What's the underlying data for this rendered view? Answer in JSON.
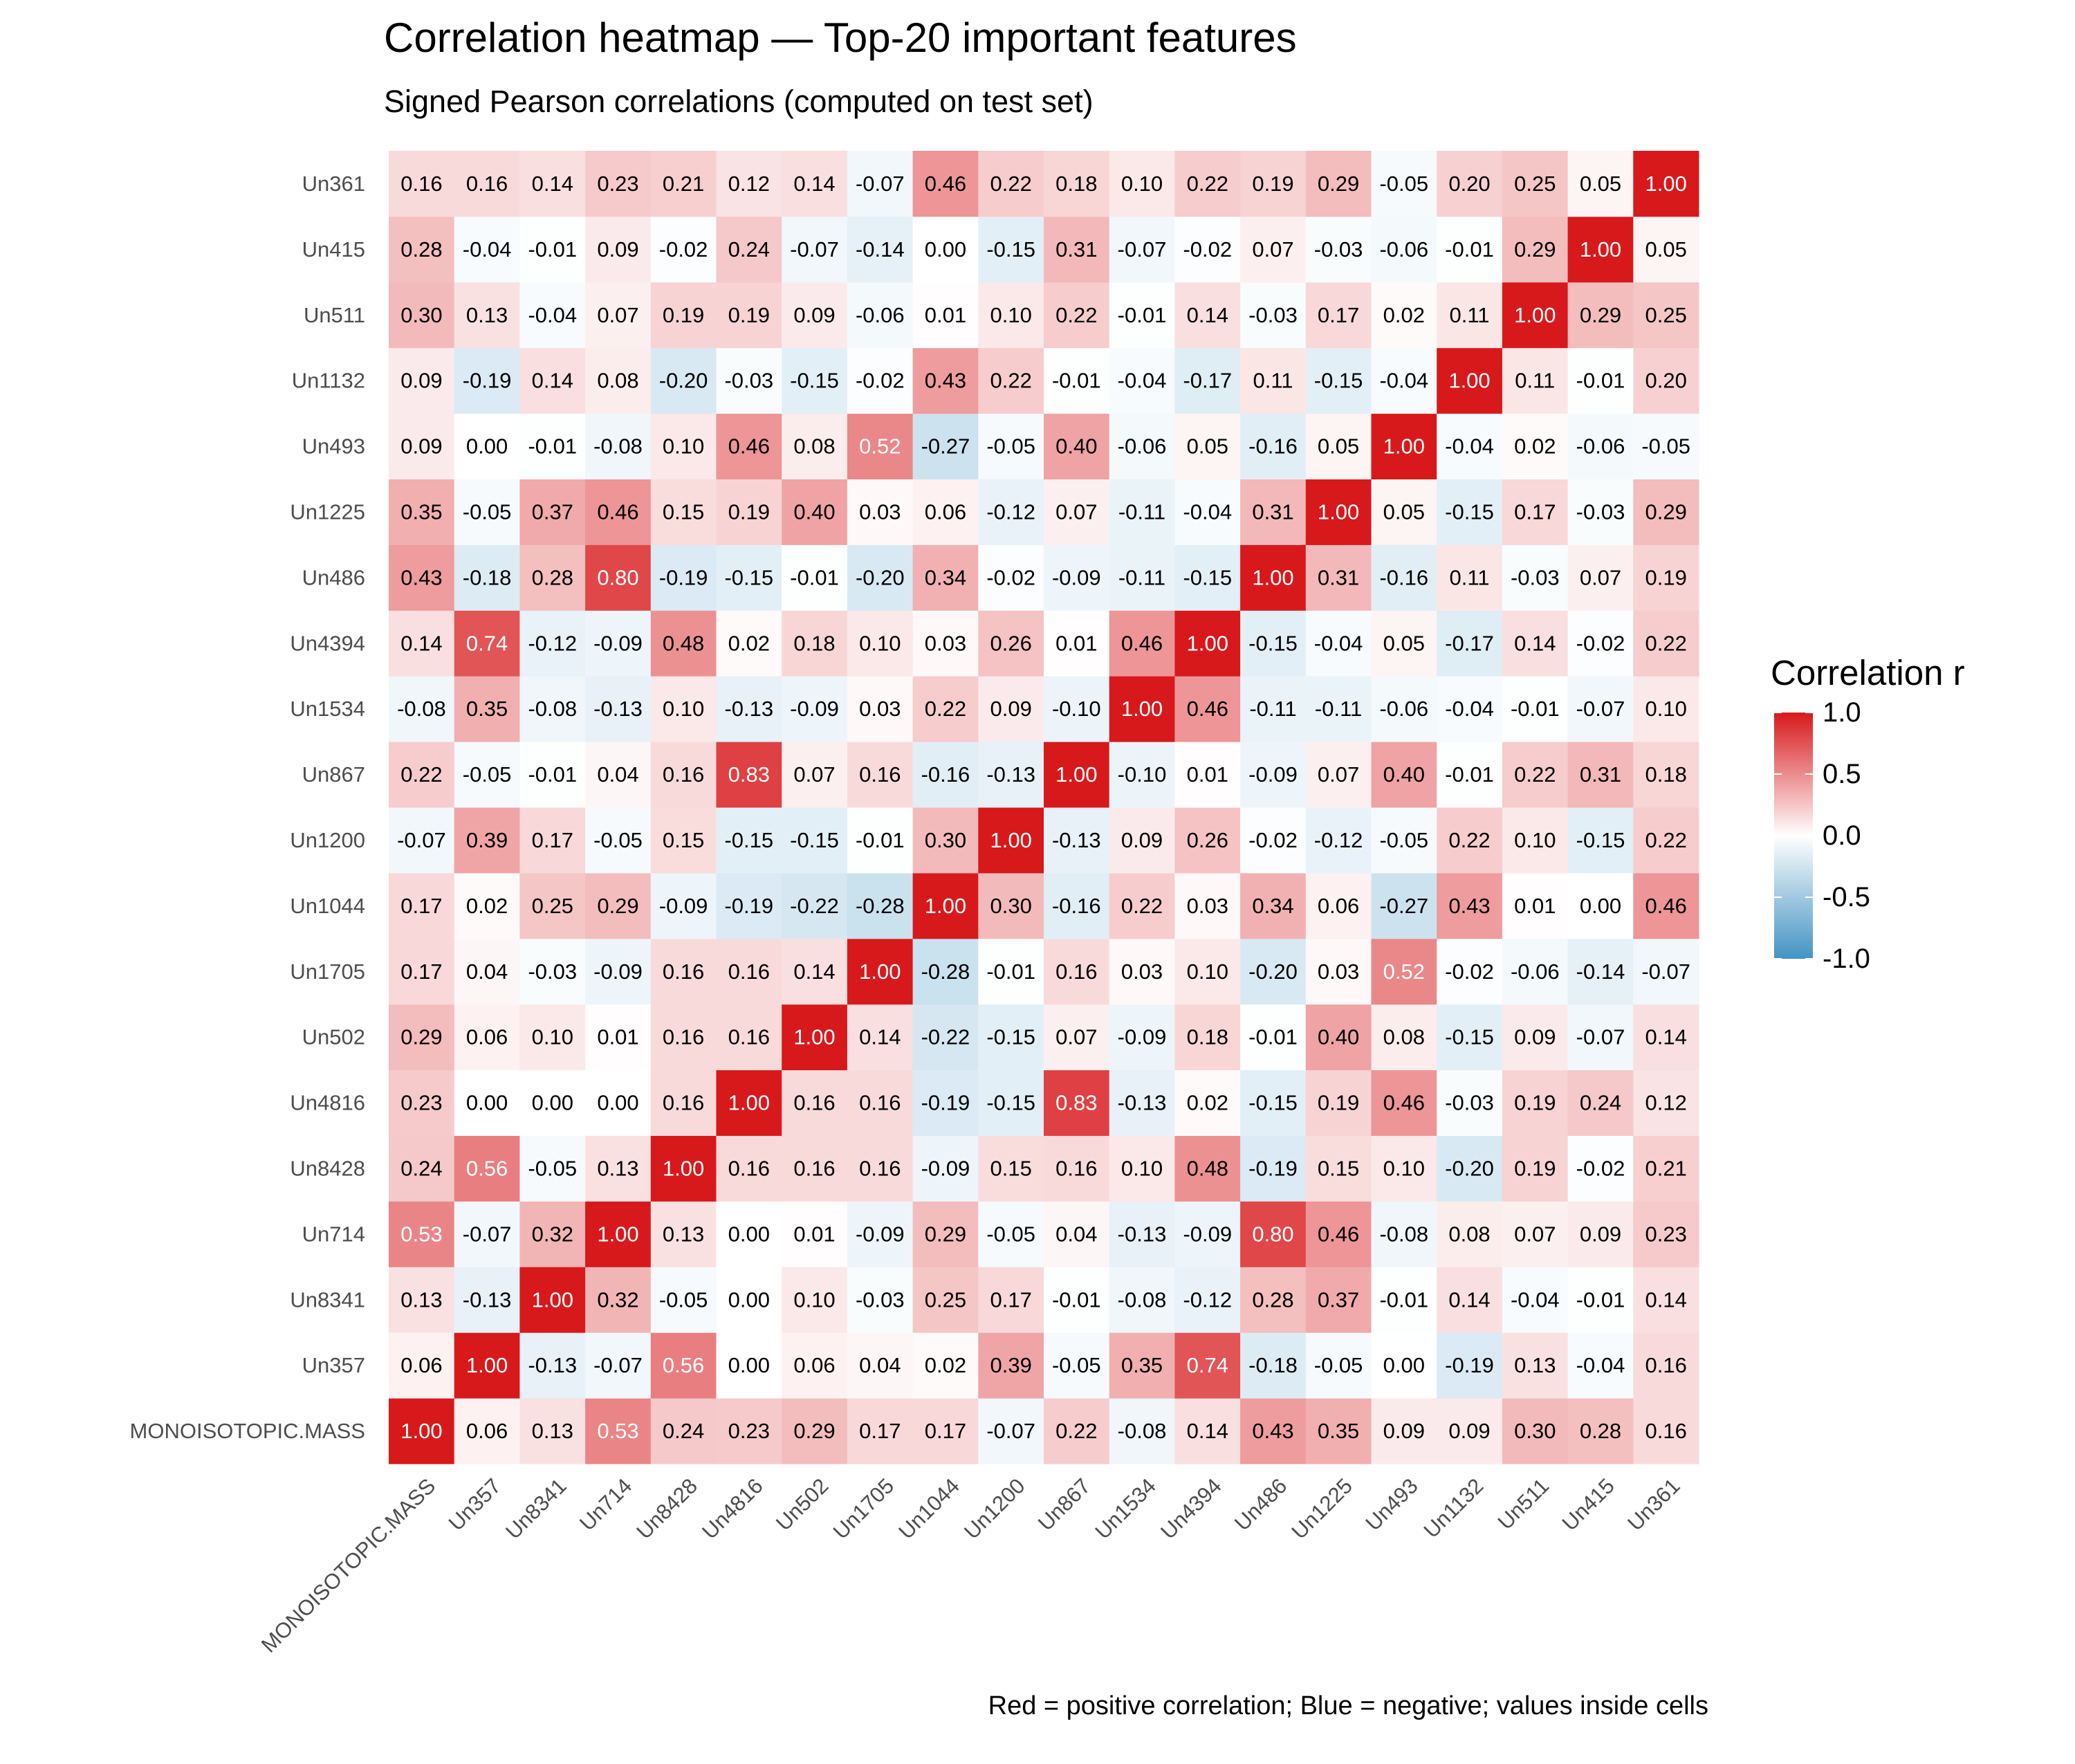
{
  "chart_data": {
    "type": "heatmap",
    "title": "Correlation heatmap — Top-20 important features",
    "subtitle": "Signed Pearson correlations (computed on test set)",
    "caption": "Red = positive correlation; Blue = negative; values inside cells",
    "features": [
      "MONOISOTOPIC.MASS",
      "Un357",
      "Un8341",
      "Un714",
      "Un8428",
      "Un4816",
      "Un502",
      "Un1705",
      "Un1044",
      "Un1200",
      "Un867",
      "Un1534",
      "Un4394",
      "Un486",
      "Un1225",
      "Un493",
      "Un1132",
      "Un511",
      "Un415",
      "Un361"
    ],
    "matrix": [
      [
        1.0,
        0.06,
        0.13,
        0.53,
        0.24,
        0.23,
        0.29,
        0.17,
        0.17,
        -0.07,
        0.22,
        -0.08,
        0.14,
        0.43,
        0.35,
        0.09,
        0.09,
        0.3,
        0.28,
        0.16
      ],
      [
        0.06,
        1.0,
        -0.13,
        -0.07,
        0.56,
        0.0,
        0.06,
        0.04,
        0.02,
        0.39,
        -0.05,
        0.35,
        0.74,
        -0.18,
        -0.05,
        -0.0,
        -0.19,
        0.13,
        -0.04,
        0.16
      ],
      [
        0.13,
        -0.13,
        1.0,
        0.32,
        -0.05,
        0.0,
        0.1,
        -0.03,
        0.25,
        0.17,
        -0.01,
        -0.08,
        -0.12,
        0.28,
        0.37,
        -0.01,
        0.14,
        -0.04,
        -0.01,
        0.14
      ],
      [
        0.53,
        -0.07,
        0.32,
        1.0,
        0.13,
        0.0,
        0.01,
        -0.09,
        0.29,
        -0.05,
        0.04,
        -0.13,
        -0.09,
        0.8,
        0.46,
        -0.08,
        0.08,
        0.07,
        0.09,
        0.23
      ],
      [
        0.24,
        0.56,
        -0.05,
        0.13,
        1.0,
        0.16,
        0.16,
        0.16,
        -0.09,
        0.15,
        0.16,
        0.1,
        0.48,
        -0.19,
        0.15,
        0.1,
        -0.2,
        0.19,
        -0.02,
        0.21
      ],
      [
        0.23,
        0.0,
        0.0,
        0.0,
        0.16,
        1.0,
        0.16,
        0.16,
        -0.19,
        -0.15,
        0.83,
        -0.13,
        0.02,
        -0.15,
        0.19,
        0.46,
        -0.03,
        0.19,
        0.24,
        0.12
      ],
      [
        0.29,
        0.06,
        0.1,
        0.01,
        0.16,
        0.16,
        1.0,
        0.14,
        -0.22,
        -0.15,
        0.07,
        -0.09,
        0.18,
        -0.01,
        0.4,
        0.08,
        -0.15,
        0.09,
        -0.07,
        0.14
      ],
      [
        0.17,
        0.04,
        -0.03,
        -0.09,
        0.16,
        0.16,
        0.14,
        1.0,
        -0.28,
        -0.01,
        0.16,
        0.03,
        0.1,
        -0.2,
        0.03,
        0.52,
        -0.02,
        -0.06,
        -0.14,
        -0.07
      ],
      [
        0.17,
        0.02,
        0.25,
        0.29,
        -0.09,
        -0.19,
        -0.22,
        -0.28,
        1.0,
        0.3,
        -0.16,
        0.22,
        0.03,
        0.34,
        0.06,
        -0.27,
        0.43,
        0.01,
        -0.0,
        0.46
      ],
      [
        -0.07,
        0.39,
        0.17,
        -0.05,
        0.15,
        -0.15,
        -0.15,
        -0.01,
        0.3,
        1.0,
        -0.13,
        0.09,
        0.26,
        -0.02,
        -0.12,
        -0.05,
        0.22,
        0.1,
        -0.15,
        0.22
      ],
      [
        0.22,
        -0.05,
        -0.01,
        0.04,
        0.16,
        0.83,
        0.07,
        0.16,
        -0.16,
        -0.13,
        1.0,
        -0.1,
        0.01,
        -0.09,
        0.07,
        0.4,
        -0.01,
        0.22,
        0.31,
        0.18
      ],
      [
        -0.08,
        0.35,
        -0.08,
        -0.13,
        0.1,
        -0.13,
        -0.09,
        0.03,
        0.22,
        0.09,
        -0.1,
        1.0,
        0.46,
        -0.11,
        -0.11,
        -0.06,
        -0.04,
        -0.01,
        -0.07,
        0.1
      ],
      [
        0.14,
        0.74,
        -0.12,
        -0.09,
        0.48,
        0.02,
        0.18,
        0.1,
        0.03,
        0.26,
        0.01,
        0.46,
        1.0,
        -0.15,
        -0.04,
        0.05,
        -0.17,
        0.14,
        -0.02,
        0.22
      ],
      [
        0.43,
        -0.18,
        0.28,
        0.8,
        -0.19,
        -0.15,
        -0.01,
        -0.2,
        0.34,
        -0.02,
        -0.09,
        -0.11,
        -0.15,
        1.0,
        0.31,
        -0.16,
        0.11,
        -0.03,
        0.07,
        0.19
      ],
      [
        0.35,
        -0.05,
        0.37,
        0.46,
        0.15,
        0.19,
        0.4,
        0.03,
        0.06,
        -0.12,
        0.07,
        -0.11,
        -0.04,
        0.31,
        1.0,
        0.05,
        -0.15,
        0.17,
        -0.03,
        0.29
      ],
      [
        0.09,
        -0.0,
        -0.01,
        -0.08,
        0.1,
        0.46,
        0.08,
        0.52,
        -0.27,
        -0.05,
        0.4,
        -0.06,
        0.05,
        -0.16,
        0.05,
        1.0,
        -0.04,
        0.02,
        -0.06,
        -0.05
      ],
      [
        0.09,
        -0.19,
        0.14,
        0.08,
        -0.2,
        -0.03,
        -0.15,
        -0.02,
        0.43,
        0.22,
        -0.01,
        -0.04,
        -0.17,
        0.11,
        -0.15,
        -0.04,
        1.0,
        0.11,
        -0.01,
        0.2
      ],
      [
        0.3,
        0.13,
        -0.04,
        0.07,
        0.19,
        0.19,
        0.09,
        -0.06,
        0.01,
        0.1,
        0.22,
        -0.01,
        0.14,
        -0.03,
        0.17,
        0.02,
        0.11,
        1.0,
        0.29,
        0.25
      ],
      [
        0.28,
        -0.04,
        -0.01,
        0.09,
        -0.02,
        0.24,
        -0.07,
        -0.14,
        -0.0,
        -0.15,
        0.31,
        -0.07,
        -0.02,
        0.07,
        -0.03,
        -0.06,
        -0.01,
        0.29,
        1.0,
        0.05
      ],
      [
        0.16,
        0.16,
        0.14,
        0.23,
        0.21,
        0.12,
        0.14,
        -0.07,
        0.46,
        0.22,
        0.18,
        0.1,
        0.22,
        0.19,
        0.29,
        -0.05,
        0.2,
        0.25,
        0.05,
        1.0
      ]
    ],
    "value_format": "2 decimals",
    "color_scale": {
      "low": "#4393c3",
      "mid": "#ffffff",
      "high": "#d7191c",
      "limits": [
        -1.0,
        1.0
      ]
    },
    "legend": {
      "title": "Correlation r",
      "ticks": [
        "1.0",
        "0.5",
        "0.0",
        "-0.5",
        "-1.0"
      ],
      "tick_values": [
        1.0,
        0.5,
        0.0,
        -0.5,
        -1.0
      ],
      "position": "right"
    },
    "grid": false,
    "x_tick_rotation_deg": 45
  }
}
